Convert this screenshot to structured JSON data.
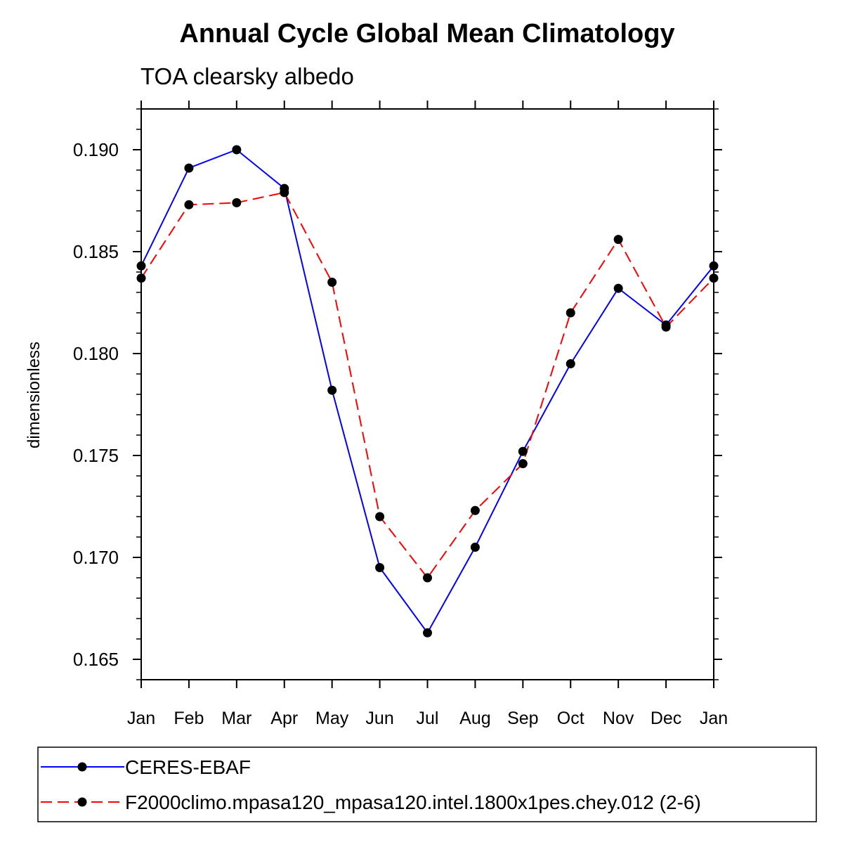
{
  "chart_data": {
    "type": "line",
    "title": "Annual Cycle Global Mean Climatology",
    "subtitle": "TOA clearsky albedo",
    "xlabel": "",
    "ylabel": "dimensionless",
    "categories": [
      "Jan",
      "Feb",
      "Mar",
      "Apr",
      "May",
      "Jun",
      "Jul",
      "Aug",
      "Sep",
      "Oct",
      "Nov",
      "Dec",
      "Jan"
    ],
    "ylim": [
      0.164,
      0.192
    ],
    "yticks": [
      "0.165",
      "0.170",
      "0.175",
      "0.180",
      "0.185",
      "0.190"
    ],
    "grid": false,
    "legend_position": "bottom",
    "series": [
      {
        "name": "CERES-EBAF",
        "color": "#0000ff",
        "line_style": "solid",
        "marker": "filled-circle",
        "values": [
          0.1843,
          0.1891,
          0.19,
          0.1881,
          0.1782,
          0.1695,
          0.1663,
          0.1705,
          0.1752,
          0.1795,
          0.1832,
          0.1814,
          0.1843
        ]
      },
      {
        "name": "F2000climo.mpasa120_mpasa120.intel.1800x1pes.chey.012 (2-6)",
        "color": "#ff0000",
        "line_style": "dashed",
        "marker": "filled-circle",
        "values": [
          0.1837,
          0.1873,
          0.1874,
          0.1879,
          0.1835,
          0.172,
          0.169,
          0.1723,
          0.1746,
          0.182,
          0.1856,
          0.1813,
          0.1837
        ]
      }
    ]
  }
}
